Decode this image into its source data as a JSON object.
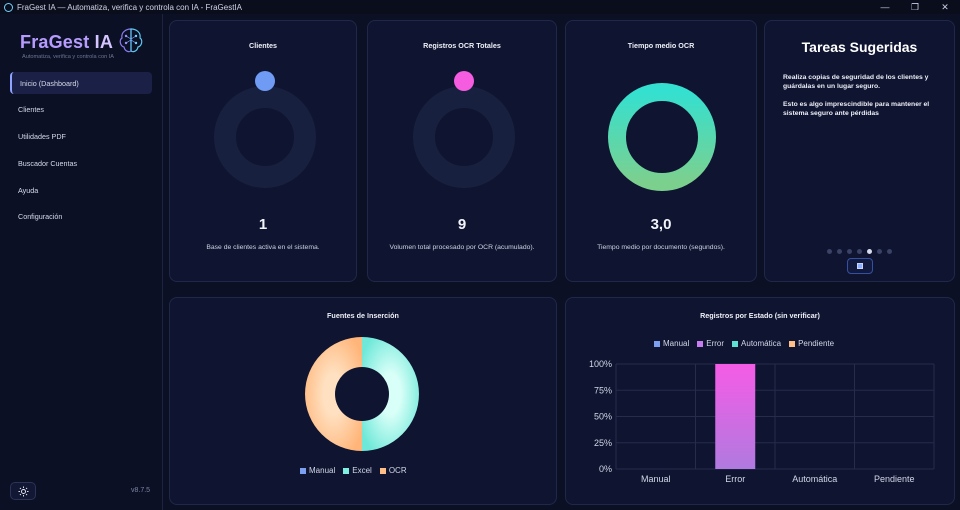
{
  "window": {
    "title": "FraGest IA — Automatiza, verifica y controla con IA - FraGestIA"
  },
  "brand": {
    "name_main": "FraGest",
    "name_suffix": "IA",
    "subtitle": "Automatiza, verifica y controla con IA",
    "version": "v8.7.5"
  },
  "nav": {
    "items": [
      {
        "label": "Inicio (Dashboard)",
        "active": true
      },
      {
        "label": "Clientes",
        "active": false
      },
      {
        "label": "Utilidades PDF",
        "active": false
      },
      {
        "label": "Buscador Cuentas",
        "active": false
      },
      {
        "label": "Ayuda",
        "active": false
      },
      {
        "label": "Configuración",
        "active": false
      }
    ]
  },
  "cards": {
    "clientes": {
      "title": "Clientes",
      "value": "1",
      "desc": "Base de clientes activa en el sistema.",
      "color": "#6f9bf5"
    },
    "ocr_totales": {
      "title": "Registros OCR Totales",
      "value": "9",
      "desc": "Volumen total procesado por OCR (acumulado).",
      "color": "#f65ce0"
    },
    "tiempo_ocr": {
      "title": "Tiempo medio OCR",
      "value": "3,0",
      "desc": "Tiempo medio por documento (segundos).",
      "color_start": "#34e0d0",
      "color_end": "#7cd08e"
    }
  },
  "tasks": {
    "title": "Tareas Sugeridas",
    "paragraph1": "Realiza copias de seguridad de los clientes y guárdalas en un lugar seguro.",
    "paragraph2": "Esto es algo imprescindible para mantener el sistema seguro ante pérdidas",
    "dots_total": 7,
    "dot_active": 4
  },
  "fuentes": {
    "title": "Fuentes de Inserción",
    "chart_data": {
      "type": "pie",
      "title": "Fuentes de Inserción",
      "categories": [
        "Manual",
        "Excel",
        "OCR"
      ],
      "values": [
        0,
        50,
        50
      ],
      "colors": [
        "#7d9ff0",
        "#7ff0e0",
        "#ffbe88"
      ],
      "legend": "bottom"
    }
  },
  "estados": {
    "title": "Registros por Estado (sin verificar)",
    "chart_data": {
      "type": "bar",
      "title": "Registros por Estado (sin verificar)",
      "categories": [
        "Manual",
        "Error",
        "Automática",
        "Pendiente"
      ],
      "values": [
        0,
        100,
        0,
        0
      ],
      "ylim": [
        0,
        100
      ],
      "yticks": [
        "0%",
        "25%",
        "50%",
        "75%",
        "100%"
      ],
      "legend_labels": [
        "Manual",
        "Error",
        "Automática",
        "Pendiente"
      ],
      "colors": [
        "#7d9ff0",
        "#c77cf0",
        "#5fe0d4",
        "#ffbe88"
      ],
      "legend": "top",
      "grid": true
    }
  }
}
